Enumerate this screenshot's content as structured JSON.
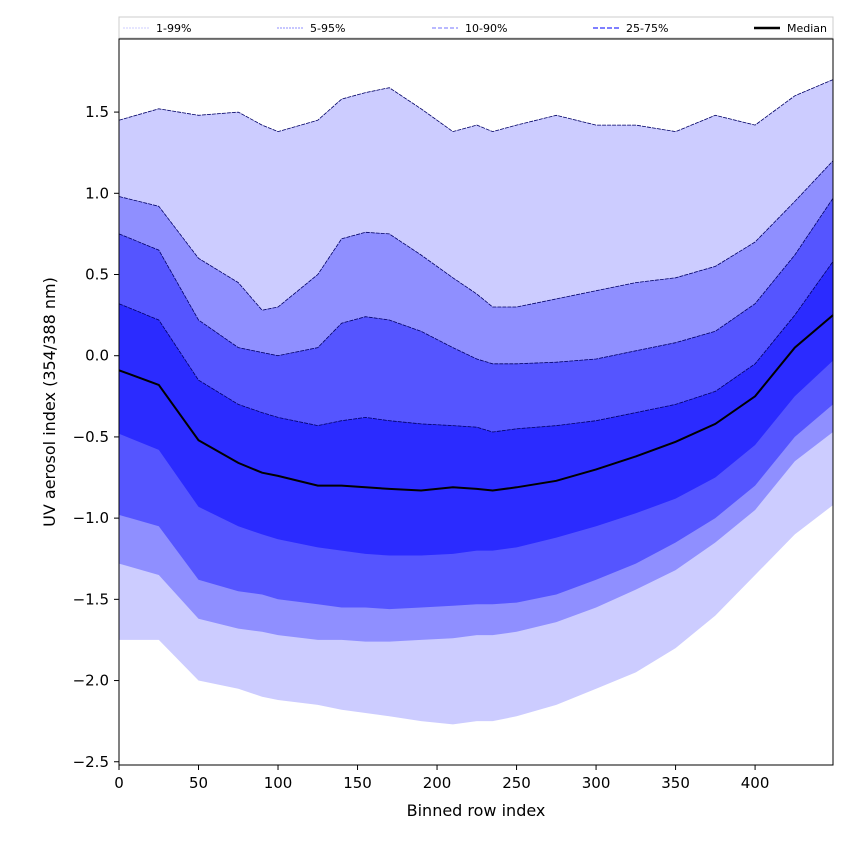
{
  "chart_data": {
    "type": "area",
    "xlabel": "Binned row index",
    "ylabel": "UV aerosol index (354/388 nm)",
    "xlim": [
      0,
      449
    ],
    "ylim": [
      -2.52,
      1.95
    ],
    "x_ticks": [
      0,
      50,
      100,
      150,
      200,
      250,
      300,
      350,
      400
    ],
    "y_ticks": [
      -2.5,
      -2.0,
      -1.5,
      -1.0,
      -0.5,
      0.0,
      0.5,
      1.0,
      1.5
    ],
    "x_tick_labels": [
      "0",
      "50",
      "100",
      "150",
      "200",
      "250",
      "300",
      "350",
      "400"
    ],
    "y_tick_labels": [
      "−2.5",
      "−2.0",
      "−1.5",
      "−1.0",
      "−0.5",
      "0.0",
      "0.5",
      "1.0",
      "1.5"
    ],
    "grid": false,
    "legend_position": "top",
    "legend": [
      {
        "label": "1-99%",
        "color": "#ccccff"
      },
      {
        "label": "5-95%",
        "color": "#8f8fff"
      },
      {
        "label": "10-90%",
        "color": "#5555ff"
      },
      {
        "label": "25-75%",
        "color": "#2b2bff"
      },
      {
        "label": "Median",
        "color": "#000000"
      }
    ],
    "x": [
      0,
      25,
      50,
      75,
      90,
      100,
      125,
      140,
      155,
      170,
      190,
      210,
      225,
      235,
      250,
      275,
      300,
      325,
      350,
      375,
      400,
      425,
      449
    ],
    "bands": [
      {
        "name": "1-99%",
        "color": "#ccccff",
        "lower": [
          -1.75,
          -1.75,
          -2.0,
          -2.05,
          -2.1,
          -2.12,
          -2.15,
          -2.18,
          -2.2,
          -2.22,
          -2.25,
          -2.27,
          -2.25,
          -2.25,
          -2.22,
          -2.15,
          -2.05,
          -1.95,
          -1.8,
          -1.6,
          -1.35,
          -1.1,
          -0.92
        ],
        "upper": [
          1.45,
          1.52,
          1.48,
          1.5,
          1.42,
          1.38,
          1.45,
          1.58,
          1.62,
          1.65,
          1.52,
          1.38,
          1.42,
          1.38,
          1.42,
          1.48,
          1.42,
          1.42,
          1.38,
          1.48,
          1.42,
          1.6,
          1.7
        ]
      },
      {
        "name": "5-95%",
        "color": "#8f8fff",
        "lower": [
          -1.28,
          -1.35,
          -1.62,
          -1.68,
          -1.7,
          -1.72,
          -1.75,
          -1.75,
          -1.76,
          -1.76,
          -1.75,
          -1.74,
          -1.72,
          -1.72,
          -1.7,
          -1.64,
          -1.55,
          -1.44,
          -1.32,
          -1.15,
          -0.95,
          -0.65,
          -0.47
        ]
      },
      {
        "name": "10-90%",
        "color": "#5555ff",
        "lower": [
          -0.98,
          -1.05,
          -1.38,
          -1.45,
          -1.47,
          -1.5,
          -1.53,
          -1.55,
          -1.55,
          -1.56,
          -1.55,
          -1.54,
          -1.53,
          -1.53,
          -1.52,
          -1.47,
          -1.38,
          -1.28,
          -1.15,
          -1.0,
          -0.8,
          -0.5,
          -0.3
        ],
        "upper": [
          0.98,
          0.92,
          0.6,
          0.45,
          0.28,
          0.3,
          0.5,
          0.72,
          0.76,
          0.75,
          0.62,
          0.48,
          0.38,
          0.3,
          0.3,
          0.35,
          0.4,
          0.45,
          0.48,
          0.55,
          0.7,
          0.95,
          1.2
        ]
      },
      {
        "name": "25-75%",
        "color": "#2b2bff",
        "lower": [
          -0.48,
          -0.58,
          -0.93,
          -1.05,
          -1.1,
          -1.13,
          -1.18,
          -1.2,
          -1.22,
          -1.23,
          -1.23,
          -1.22,
          -1.2,
          -1.2,
          -1.18,
          -1.12,
          -1.05,
          -0.97,
          -0.88,
          -0.75,
          -0.55,
          -0.25,
          -0.03
        ],
        "upper": [
          0.75,
          0.65,
          0.22,
          0.05,
          0.02,
          0.0,
          0.05,
          0.2,
          0.24,
          0.22,
          0.15,
          0.05,
          -0.02,
          -0.05,
          -0.05,
          -0.04,
          -0.02,
          0.03,
          0.08,
          0.15,
          0.32,
          0.62,
          0.97
        ]
      },
      {
        "name": "inner",
        "color": "#2b2bff",
        "upper": [
          0.32,
          0.22,
          -0.15,
          -0.3,
          -0.35,
          -0.38,
          -0.43,
          -0.4,
          -0.38,
          -0.4,
          -0.42,
          -0.43,
          -0.44,
          -0.47,
          -0.45,
          -0.43,
          -0.4,
          -0.35,
          -0.3,
          -0.22,
          -0.05,
          0.25,
          0.58
        ]
      }
    ],
    "series": [
      {
        "name": "Median",
        "color": "#000000",
        "values": [
          -0.09,
          -0.18,
          -0.52,
          -0.66,
          -0.72,
          -0.74,
          -0.8,
          -0.8,
          -0.81,
          -0.82,
          -0.83,
          -0.81,
          -0.82,
          -0.83,
          -0.81,
          -0.77,
          -0.7,
          -0.62,
          -0.53,
          -0.42,
          -0.25,
          0.05,
          0.25
        ]
      }
    ]
  }
}
